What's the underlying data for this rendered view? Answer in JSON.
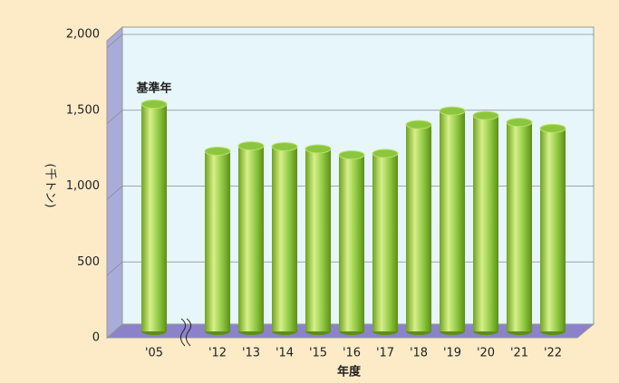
{
  "chart_data": {
    "type": "bar",
    "y_label": "(千トン)",
    "x_label": "年度",
    "annotation": "基準年",
    "categories": [
      "'05",
      "'12",
      "'13",
      "'14",
      "'15",
      "'16",
      "'17",
      "'18",
      "'19",
      "'20",
      "'21",
      "'22"
    ],
    "values": [
      1540,
      1230,
      1265,
      1260,
      1245,
      1205,
      1215,
      1405,
      1495,
      1465,
      1420,
      1380
    ],
    "color": "#8cc63f",
    "ylim": [
      0,
      2000
    ],
    "yticks": [
      0,
      500,
      {
        "value": 1000,
        "label": "1,000"
      },
      {
        "value": 1500,
        "label": "1,500"
      },
      {
        "value": 2000,
        "label": "2,000"
      }
    ],
    "grid": true
  }
}
